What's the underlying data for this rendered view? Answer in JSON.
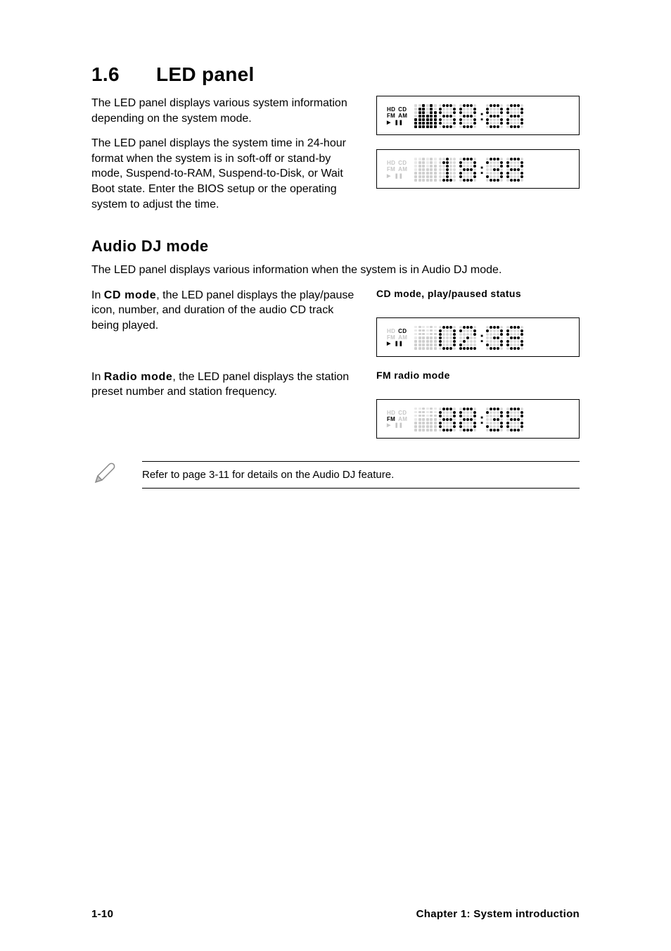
{
  "heading": {
    "number": "1.6",
    "title": "LED panel"
  },
  "intro": {
    "para1": "The LED panel displays various system information depending on the system mode.",
    "para2": "The LED panel displays the system time in 24-hour format when the system is in soft-off or stand-by mode, Suspend-to-RAM, Suspend-to-Disk, or Wait Boot state. Enter the BIOS setup or the operating system to adjust the time."
  },
  "panel_full": {
    "indicators": {
      "hd": {
        "text": "HD",
        "on": true
      },
      "cd": {
        "text": "CD",
        "on": true
      },
      "fm": {
        "text": "FM",
        "on": true
      },
      "am": {
        "text": "AM",
        "on": true
      },
      "play": {
        "text": "▶",
        "on": true
      },
      "pause": {
        "text": "❚❚",
        "on": true
      }
    },
    "spectrum_on": true,
    "spectrum_heights": [
      3,
      6,
      7,
      4,
      7,
      5
    ],
    "digits": [
      "8",
      "8",
      ":",
      "8",
      "8"
    ],
    "digits_on": [
      true,
      true,
      true,
      true,
      true
    ]
  },
  "panel_time": {
    "indicators": {
      "hd": {
        "text": "HD",
        "on": false
      },
      "cd": {
        "text": "CD",
        "on": false
      },
      "fm": {
        "text": "FM",
        "on": false
      },
      "am": {
        "text": "AM",
        "on": false
      },
      "play": {
        "text": "▶",
        "on": false
      },
      "pause": {
        "text": "❚❚",
        "on": false
      }
    },
    "spectrum_on": false,
    "spectrum_heights": [
      3,
      6,
      7,
      4,
      7,
      5
    ],
    "digits": [
      "1",
      "8",
      ":",
      "3",
      "8"
    ],
    "digits_on": [
      true,
      true,
      true,
      true,
      true
    ],
    "first_digit_slot_dim": false
  },
  "audio_dj": {
    "heading": "Audio DJ mode",
    "intro": "The LED panel displays various information when the system is in Audio DJ mode.",
    "cd_prefix": "In ",
    "cd_bold": "CD mode",
    "cd_rest": ", the LED panel displays the play/pause icon, number, and duration of the audio CD track being played.",
    "cd_caption": "CD mode, play/paused status",
    "radio_prefix": "In ",
    "radio_bold": "Radio mode",
    "radio_rest": ", the LED panel displays the station preset number and station frequency.",
    "radio_caption": "FM radio mode"
  },
  "panel_cd": {
    "indicators": {
      "hd": {
        "text": "HD",
        "on": false
      },
      "cd": {
        "text": "CD",
        "on": true
      },
      "fm": {
        "text": "FM",
        "on": false
      },
      "am": {
        "text": "AM",
        "on": false
      },
      "play": {
        "text": "▶",
        "on": true
      },
      "pause": {
        "text": "❚❚",
        "on": true
      }
    },
    "spectrum_on": false,
    "spectrum_heights": [
      3,
      7,
      6,
      4,
      7,
      5
    ],
    "small_digit": "01",
    "digits": [
      "0",
      "2",
      ":",
      "3",
      "8"
    ],
    "digits_on": [
      true,
      true,
      true,
      true,
      true
    ]
  },
  "panel_fm": {
    "indicators": {
      "hd": {
        "text": "HD",
        "on": false
      },
      "cd": {
        "text": "CD",
        "on": false
      },
      "fm": {
        "text": "FM",
        "on": true
      },
      "am": {
        "text": "AM",
        "on": false
      },
      "play": {
        "text": "▶",
        "on": false
      },
      "pause": {
        "text": "❚❚",
        "on": false
      }
    },
    "spectrum_on": false,
    "spectrum_heights": [
      3,
      6,
      7,
      4,
      7,
      5
    ],
    "digits": [
      "8",
      "8",
      ":",
      "3",
      "8"
    ],
    "digits_on": [
      true,
      true,
      true,
      true,
      true
    ]
  },
  "note": "Refer to page 3-11 for details on the Audio DJ feature.",
  "footer": {
    "left": "1-10",
    "right": "Chapter 1: System introduction"
  },
  "dot_matrix": {
    "0": "0111010001100011000110001100010111000000",
    "1": "0010001100001000010000100001000111000000",
    "2": "0111010001000010010001000100001111100000",
    "3": "0111010001000010011000001100010111000000",
    "8": "0111010001100010111010001100010111000000"
  },
  "colors": {
    "text": "#000000",
    "dim": "#c7c7c7",
    "dim_dot": "#d9d9d9"
  }
}
